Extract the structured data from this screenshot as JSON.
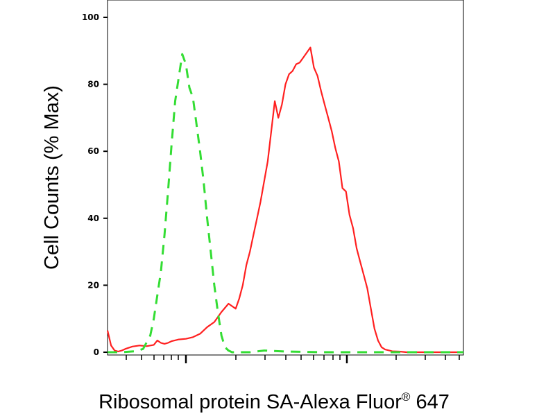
{
  "chart_data": {
    "type": "line",
    "title": "",
    "xlabel": "Ribosomal protein SA-Alexa Fluor",
    "xlabel_superscript": "®",
    "xlabel_suffix": " 647",
    "ylabel": "Cell Counts (% Max)",
    "x_scale": "log",
    "xlim": [
      0,
      100
    ],
    "ylim": [
      0,
      100
    ],
    "yticks": [
      0,
      20,
      40,
      60,
      80,
      100
    ],
    "grid": false,
    "legend": "none",
    "series": [
      {
        "color": "#ff2020",
        "style": "solid",
        "x": [
          0,
          1,
          2,
          3,
          4,
          5,
          7,
          9,
          11,
          13,
          14,
          15,
          16,
          17,
          18,
          20,
          22,
          24,
          26,
          28,
          30,
          32,
          34,
          36,
          37,
          38,
          39,
          40,
          41,
          42,
          43,
          45,
          47,
          48,
          49,
          50,
          51,
          52,
          53,
          54,
          55,
          56,
          57,
          58,
          59,
          60,
          61,
          62,
          63,
          64,
          65,
          66,
          67,
          68,
          69,
          70,
          71,
          72,
          73,
          74,
          75,
          76,
          77,
          78,
          80,
          82,
          84,
          86,
          88,
          90,
          95,
          100
        ],
        "y": [
          6.5,
          2,
          0.5,
          0.2,
          0.5,
          1,
          1.7,
          2,
          1.8,
          2.2,
          3.5,
          2.8,
          2.5,
          2.8,
          3.3,
          3.8,
          4,
          4.5,
          5.5,
          7.5,
          9,
          12,
          14.5,
          13,
          16,
          20,
          26,
          30,
          35,
          40,
          45,
          57,
          75,
          70,
          74,
          80,
          83,
          84,
          86,
          86.5,
          88,
          89.5,
          91,
          85,
          82.5,
          78,
          74,
          70,
          66,
          61,
          57,
          49,
          48,
          41,
          37,
          31,
          27,
          23,
          19,
          13,
          7,
          3.5,
          1.5,
          0.8,
          0.3,
          0.2,
          0,
          0,
          0,
          0,
          0,
          0
        ]
      },
      {
        "color": "#33dd33",
        "style": "dashed",
        "x": [
          0,
          4,
          8,
          10,
          12,
          13,
          14,
          15,
          16,
          17,
          18,
          19,
          20,
          21,
          22,
          23,
          24,
          25,
          26,
          27,
          28,
          29,
          30,
          31,
          32,
          33,
          34,
          35,
          36,
          38,
          40,
          44,
          50,
          60,
          70,
          80,
          90,
          95,
          100
        ],
        "y": [
          0,
          0,
          0.3,
          1,
          5,
          10,
          17,
          24,
          35,
          48,
          62,
          75,
          82,
          89,
          86,
          79,
          76,
          68,
          60,
          51,
          40,
          30,
          20,
          12,
          5,
          1.5,
          0.5,
          0,
          0,
          0,
          0,
          0.5,
          0.2,
          0,
          0,
          0,
          0,
          0,
          0
        ]
      }
    ]
  }
}
